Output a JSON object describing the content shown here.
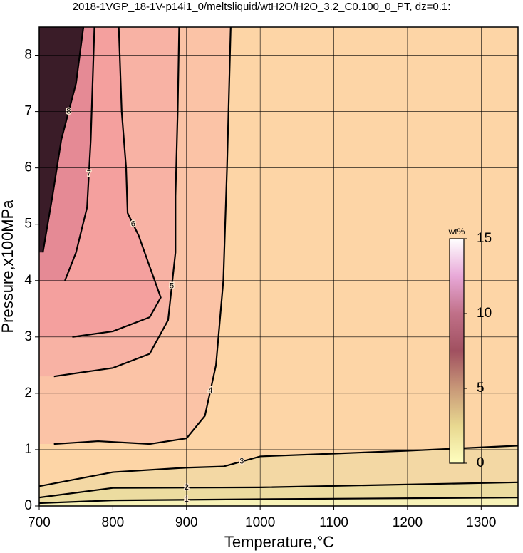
{
  "chart_data": {
    "type": "contour",
    "title": "2018-1VGP_18-1V-p14i1_0/meltsliquid/wtH2O/H2O_3.2_C0.100_0_PT, dz=0.1:",
    "x_label": "Temperature,°C",
    "y_label": "Pressure,x100MPa",
    "xlim": [
      700,
      1350
    ],
    "ylim": [
      0,
      8.5
    ],
    "xticks": [
      700,
      800,
      900,
      1000,
      1100,
      1200,
      1300
    ],
    "yticks": [
      0,
      1,
      2,
      3,
      4,
      5,
      6,
      7,
      8
    ],
    "grid": true,
    "background": "#f7f2b8",
    "contours": [
      {
        "level": 1,
        "color": "#ecdca0",
        "x": [
          700,
          800,
          1000,
          1350
        ],
        "y": [
          0.05,
          0.1,
          0.12,
          0.15
        ]
      },
      {
        "level": 2,
        "color": "#f3d8a4",
        "x": [
          700,
          800,
          1000,
          1350
        ],
        "y": [
          0.15,
          0.32,
          0.33,
          0.42
        ]
      },
      {
        "level": 3,
        "color": "#fdd5a6",
        "x": [
          700,
          800,
          900,
          950,
          1000,
          1100,
          1200,
          1350
        ],
        "y": [
          0.35,
          0.6,
          0.68,
          0.7,
          0.88,
          0.93,
          0.98,
          1.07
        ]
      },
      {
        "level": 4,
        "color": "#fbc3a6",
        "x": [
          720,
          780,
          850,
          900,
          925,
          940,
          950,
          955,
          960
        ],
        "y": [
          1.1,
          1.15,
          1.1,
          1.2,
          1.6,
          2.5,
          4,
          6,
          8.5
        ]
      },
      {
        "level": 5,
        "color": "#f8b2a4",
        "x": [
          720,
          800,
          850,
          875,
          885,
          885,
          888,
          890
        ],
        "y": [
          2.3,
          2.45,
          2.7,
          3.3,
          4.5,
          5.5,
          7,
          8.5
        ]
      },
      {
        "level": 6,
        "color": "#f4a09e",
        "x": [
          745,
          800,
          850,
          865,
          835,
          820,
          818,
          812,
          808
        ],
        "y": [
          3.0,
          3.1,
          3.35,
          3.7,
          4.8,
          5.2,
          6,
          7,
          8.5
        ]
      },
      {
        "level": 7,
        "color": "#e58a95",
        "x": [
          735,
          750,
          765,
          770,
          775
        ],
        "y": [
          4.0,
          4.5,
          5.3,
          6.5,
          8.5
        ]
      },
      {
        "level": 8,
        "color": "#3a1c28",
        "x": [
          705,
          718,
          730,
          750,
          760
        ],
        "y": [
          4.5,
          5.5,
          6.5,
          7.5,
          8.5
        ]
      }
    ],
    "colorbar": {
      "label": "wt%",
      "lim": [
        0,
        15
      ],
      "ticks": [
        0,
        5,
        10,
        15
      ],
      "colors": [
        "#ffffc0",
        "#e8d890",
        "#c89878",
        "#a05060",
        "#c07088",
        "#e8a8d8",
        "#ffffff"
      ]
    }
  }
}
